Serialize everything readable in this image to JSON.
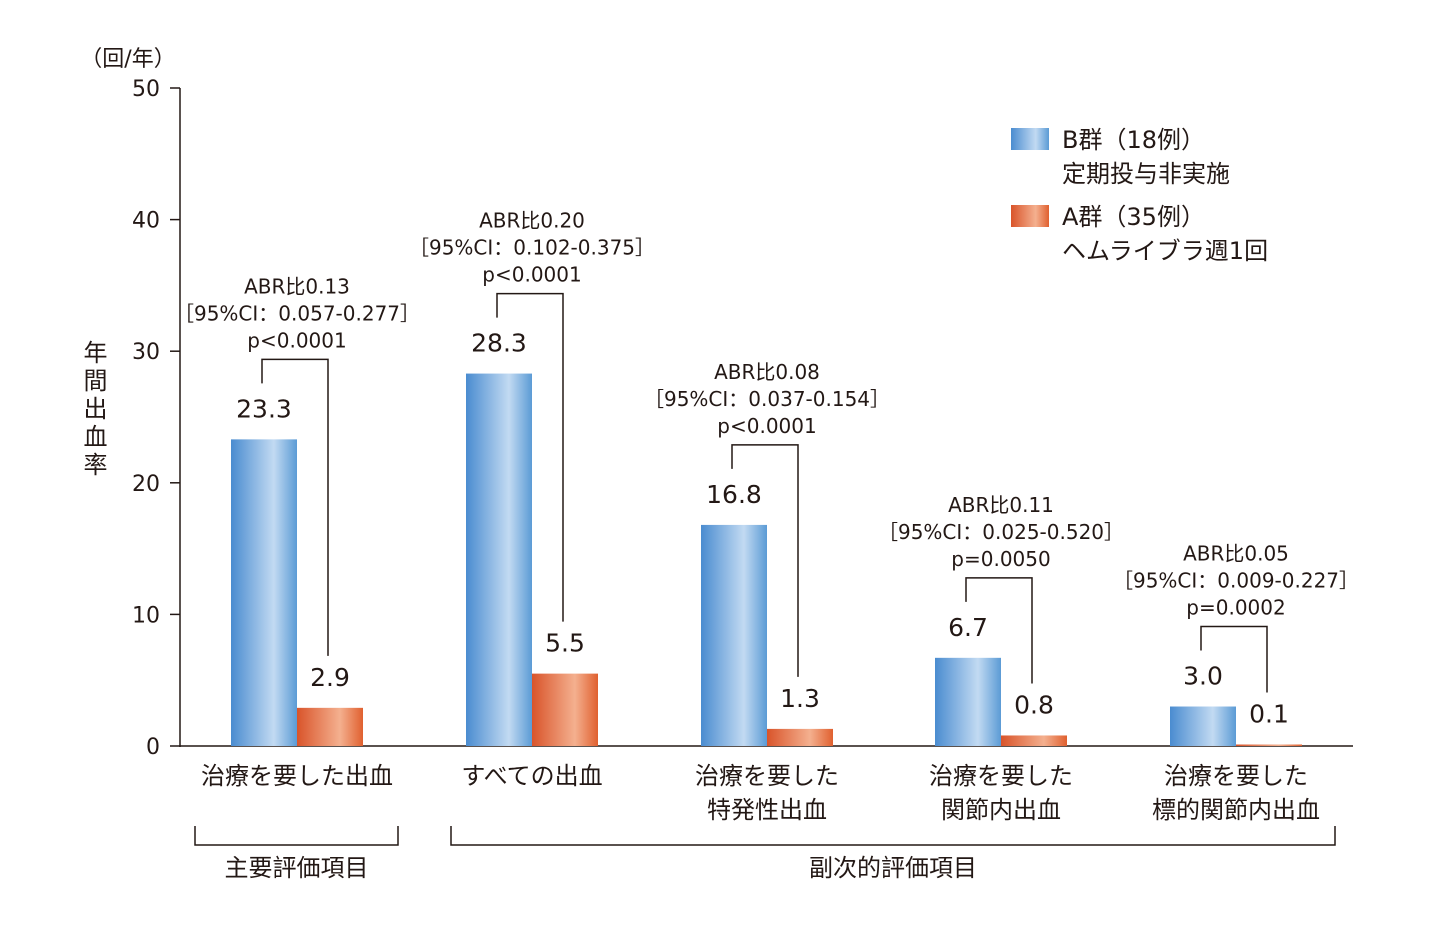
{
  "chart_data": {
    "type": "bar",
    "y_unit": "（回/年）",
    "ylabel": "年間出血率",
    "ylim": [
      0,
      50
    ],
    "yticks": [
      "0",
      "10",
      "20",
      "30",
      "40",
      "50"
    ],
    "categories": [
      [
        "治療を要した出血"
      ],
      [
        "すべての出血"
      ],
      [
        "治療を要した",
        "特発性出血"
      ],
      [
        "治療を要した",
        "関節内出血"
      ],
      [
        "治療を要した",
        "標的関節内出血"
      ]
    ],
    "series": [
      {
        "legend": [
          "B群（18例）",
          "定期投与非実施"
        ],
        "color": "#5b9bd5",
        "values": [
          23.3,
          28.3,
          16.8,
          6.7,
          3.0
        ],
        "labels": [
          "23.3",
          "28.3",
          "16.8",
          "6.7",
          "3.0"
        ]
      },
      {
        "legend": [
          "A群（35例）",
          "ヘムライブラ週1回"
        ],
        "color": "#e0602f",
        "values": [
          2.9,
          5.5,
          1.3,
          0.8,
          0.1
        ],
        "labels": [
          "2.9",
          "5.5",
          "1.3",
          "0.8",
          "0.1"
        ]
      }
    ],
    "comparisons": [
      [
        "ABR比0.13",
        "［95%CI：0.057-0.277］",
        "p<0.0001"
      ],
      [
        "ABR比0.20",
        "［95%CI：0.102-0.375］",
        "p<0.0001"
      ],
      [
        "ABR比0.08",
        "［95%CI：0.037-0.154］",
        "p<0.0001"
      ],
      [
        "ABR比0.11",
        "［95%CI：0.025-0.520］",
        "p=0.0050"
      ],
      [
        "ABR比0.05",
        "［95%CI：0.009-0.227］",
        "p=0.0002"
      ]
    ],
    "groups": [
      {
        "label": "主要評価項目",
        "from": 0,
        "to": 0
      },
      {
        "label": "副次的評価項目",
        "from": 1,
        "to": 4
      }
    ],
    "legend_position": "top-right",
    "grid": false
  }
}
